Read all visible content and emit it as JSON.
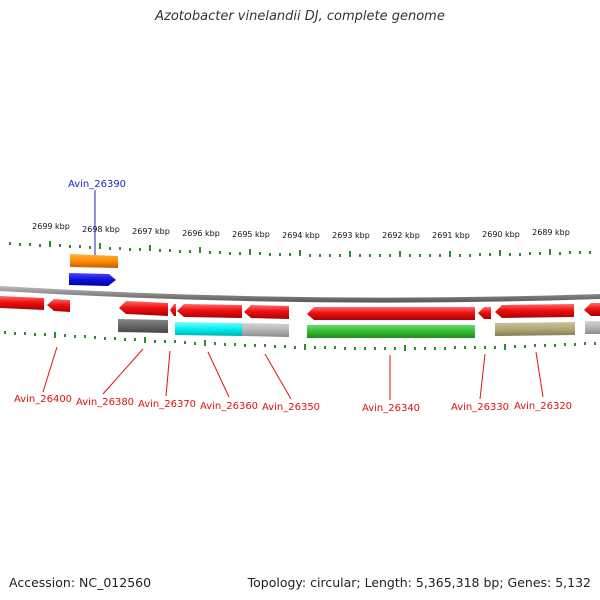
{
  "title": "Azotobacter vinelandii DJ, complete genome",
  "footer": {
    "accession": "Accession: NC_012560",
    "summary": "Topology: circular; Length: 5,365,318 bp; Genes: 5,132"
  },
  "ruler": [
    "2699 kbp",
    "2698 kbp",
    "2697 kbp",
    "2696 kbp",
    "2695 kbp",
    "2694 kbp",
    "2693 kbp",
    "2692 kbp",
    "2691 kbp",
    "2690 kbp",
    "2689 kbp"
  ],
  "gene_labels": {
    "blue": [
      "Avin_26390"
    ],
    "red": [
      "Avin_26400",
      "Avin_26380",
      "Avin_26370",
      "Avin_26360",
      "Avin_26350",
      "Avin_26340",
      "Avin_26330",
      "Avin_26320"
    ]
  },
  "colors": {
    "gene_red": "#ee1111",
    "orange": "#ff8c00",
    "blue": "#1111dd",
    "dark_gray": "#666666",
    "cyan": "#00eeee",
    "light_gray": "#b5b5b5",
    "green": "#33bb33",
    "khaki": "#b0a878",
    "tick_green": "#2e8b2e",
    "label_blue": "#2222cc",
    "label_red": "#dd1111"
  }
}
